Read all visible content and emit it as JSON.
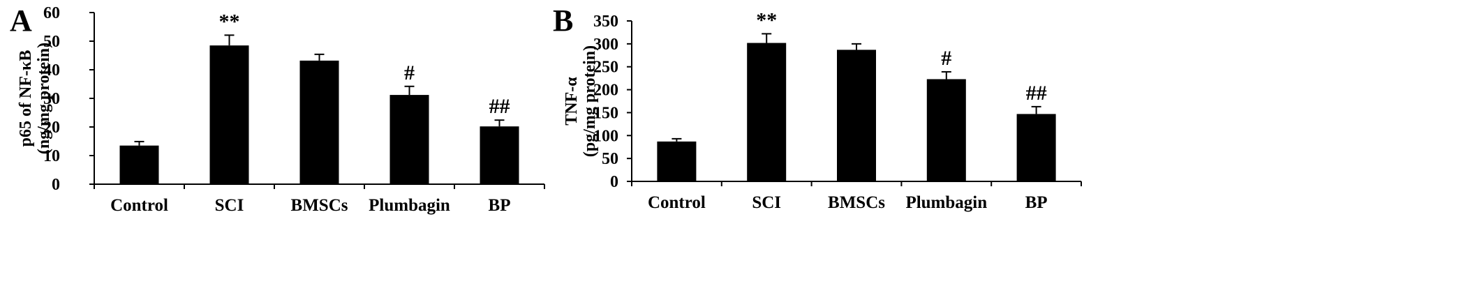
{
  "chart_data": [
    {
      "type": "bar",
      "panel": "A",
      "categories": [
        "Control",
        "SCI",
        "BMSCs",
        "Plumbagin",
        "BP"
      ],
      "values": [
        13.5,
        48.5,
        43.2,
        31.2,
        20.2
      ],
      "errors": [
        1.4,
        3.6,
        2.2,
        3.0,
        2.2
      ],
      "significance": [
        "",
        "**",
        "",
        "#",
        "##"
      ],
      "ylabel_line1": "p65 of NF-κB",
      "ylabel_line2": "(ng/mg protein)",
      "xlabel": "",
      "ylim": [
        0,
        60
      ],
      "yticks": [
        0,
        10,
        20,
        30,
        40,
        50,
        60
      ],
      "bar_color": "#000000"
    },
    {
      "type": "bar",
      "panel": "B",
      "categories": [
        "Control",
        "SCI",
        "BMSCs",
        "Plumbagin",
        "BP"
      ],
      "values": [
        87,
        302,
        287,
        223,
        147
      ],
      "errors": [
        6,
        20,
        13,
        16,
        16
      ],
      "significance": [
        "",
        "**",
        "",
        "#",
        "##"
      ],
      "ylabel_line1": "TNF-α",
      "ylabel_line2": "(pg/mg protein)",
      "xlabel": "",
      "ylim": [
        0,
        350
      ],
      "yticks": [
        0,
        50,
        100,
        150,
        200,
        250,
        300,
        350
      ],
      "bar_color": "#000000"
    }
  ]
}
